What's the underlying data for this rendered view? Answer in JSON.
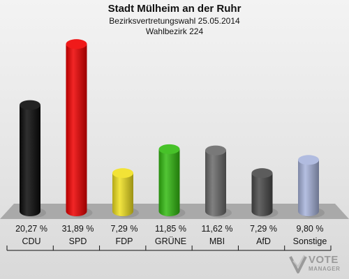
{
  "header": {
    "title": "Stadt Mülheim an der Ruhr",
    "subtitle": "Bezirksvertretungswahl 25.05.2014",
    "subtitle2": "Wahlbezirk 224"
  },
  "logo": {
    "vote": "VOTE",
    "manager": "MANAGER"
  },
  "chart_data": {
    "type": "bar",
    "title": "Stadt Mülheim an der Ruhr",
    "subtitle": "Bezirksvertretungswahl 25.05.2014 · Wahlbezirk 224",
    "categories": [
      "CDU",
      "SPD",
      "FDP",
      "GRÜNE",
      "MBI",
      "AfD",
      "Sonstige"
    ],
    "values": [
      20.27,
      31.89,
      7.29,
      11.85,
      11.62,
      7.29,
      9.8
    ],
    "labels": [
      "20,27 %",
      "31,89 %",
      "7,29 %",
      "11,85 %",
      "11,62 %",
      "7,29 %",
      "9,80 %"
    ],
    "colors": [
      "#0a0a0a",
      "#ee0000",
      "#f0e020",
      "#33bb11",
      "#6a6a6a",
      "#4a4a4a",
      "#a8b4dc"
    ],
    "unit": "%",
    "grid": false,
    "legend": "none"
  }
}
